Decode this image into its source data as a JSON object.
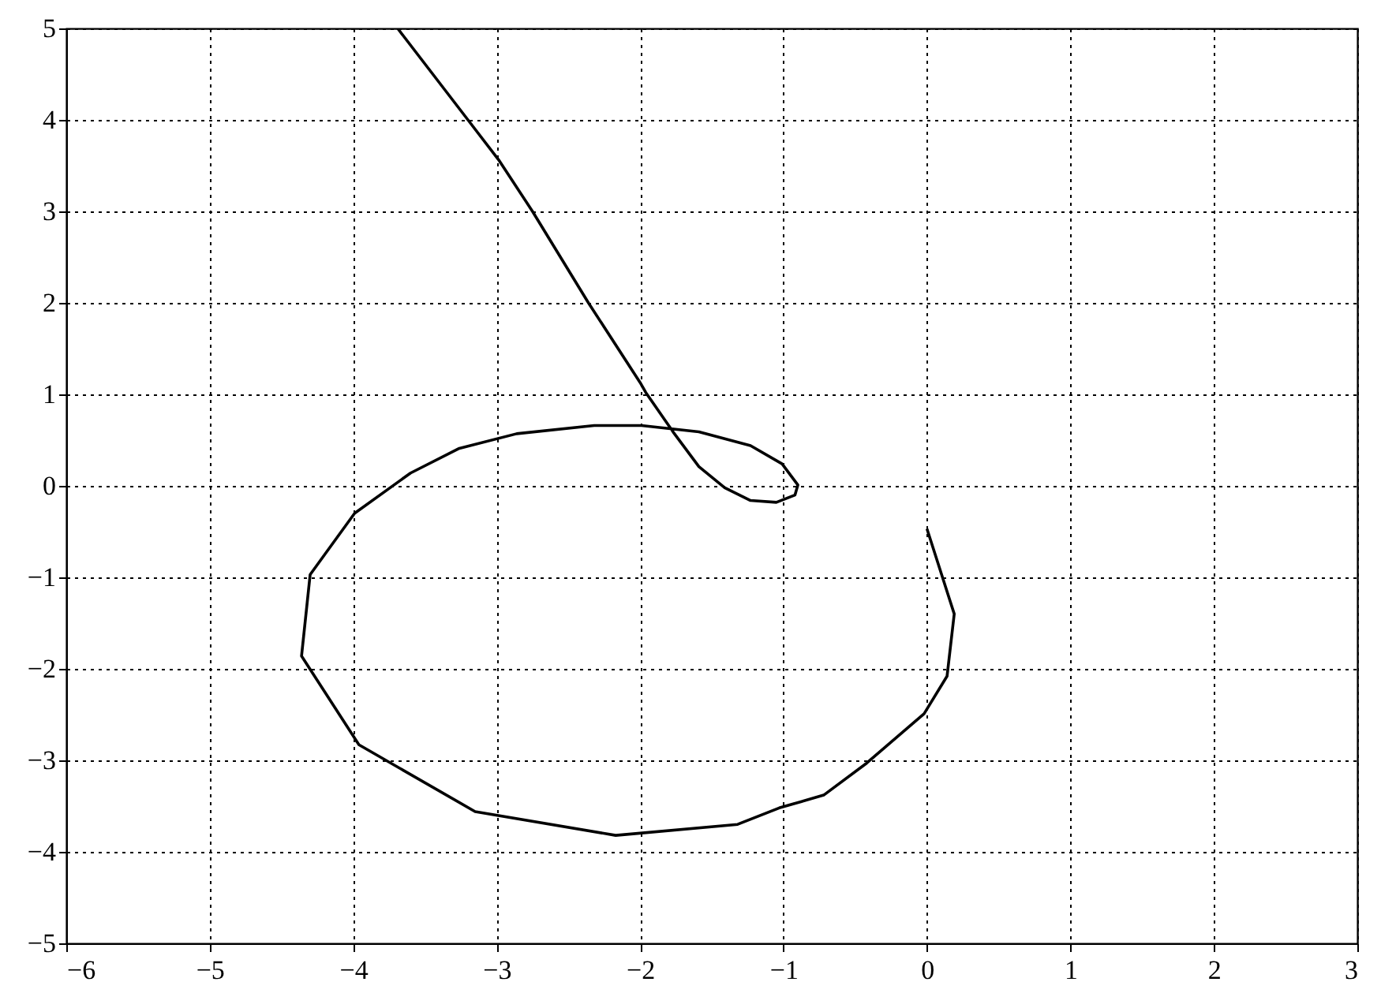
{
  "chart_data": {
    "type": "line",
    "xlim": [
      -6,
      3
    ],
    "ylim": [
      -5,
      5
    ],
    "xticks": [
      -6,
      -5,
      -4,
      -3,
      -2,
      -1,
      0,
      1,
      2,
      3
    ],
    "yticks": [
      -5,
      -4,
      -3,
      -2,
      -1,
      0,
      1,
      2,
      3,
      4,
      5
    ],
    "grid": true,
    "line_style": "solid",
    "series": [
      {
        "color": "#000000",
        "x": [
          0,
          0.19,
          0.14,
          -0.02,
          -0.42,
          -0.72,
          -1.03,
          -1.32,
          -2.17,
          -3.15,
          -3.96,
          -4.36,
          -4.3,
          -3.99,
          -3.6,
          -3.26,
          -2.86,
          -2.32,
          -1.99,
          -1.59,
          -1.23,
          -1.01,
          -0.9,
          -0.92,
          -1.05,
          -1.23,
          -1.41,
          -1.59,
          -1.77,
          -1.96,
          -2.0,
          -2.36,
          -2.75,
          -2.98,
          -3.2,
          -3.69
        ],
        "values": [
          -0.47,
          -1.4,
          -2.08,
          -2.49,
          -3.03,
          -3.38,
          -3.52,
          -3.7,
          -3.82,
          -3.56,
          -2.83,
          -1.86,
          -0.97,
          -0.3,
          0.14,
          0.41,
          0.57,
          0.66,
          0.66,
          0.59,
          0.44,
          0.24,
          0.01,
          -0.1,
          -0.18,
          -0.16,
          -0.02,
          0.21,
          0.59,
          1.02,
          1.13,
          2.0,
          3.0,
          3.55,
          4.0,
          5.0
        ]
      }
    ]
  }
}
